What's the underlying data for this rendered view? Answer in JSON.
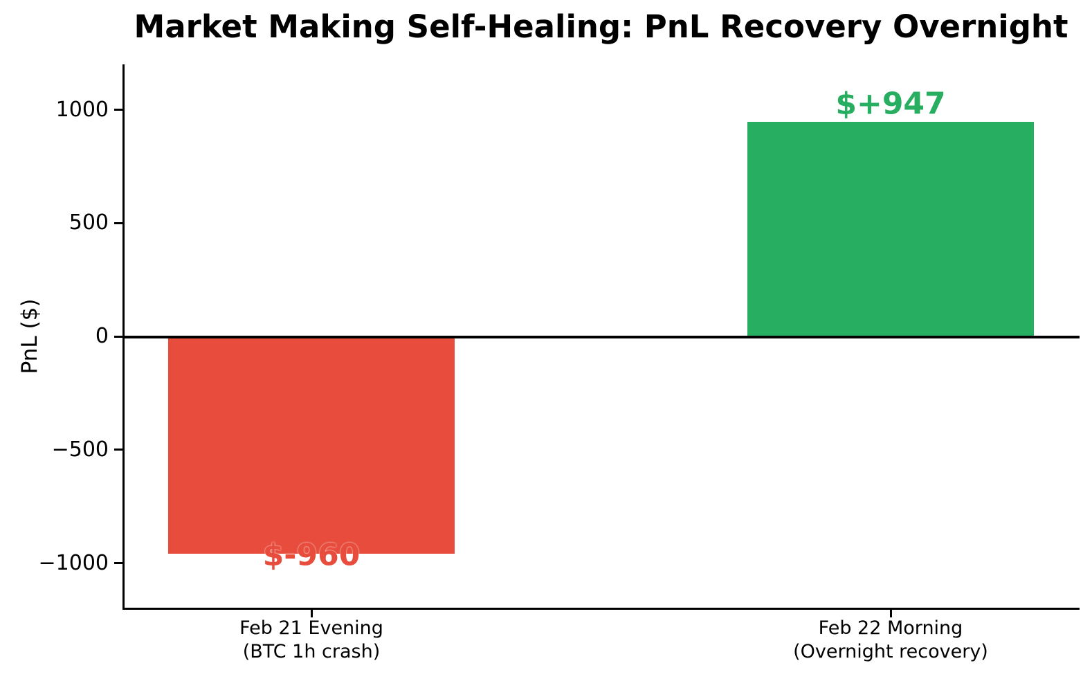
{
  "chart_data": {
    "type": "bar",
    "title": "Market Making Self-Healing: PnL Recovery Overnight",
    "xlabel": "",
    "ylabel": "PnL ($)",
    "categories": [
      [
        "Feb 21 Evening",
        "(BTC 1h crash)"
      ],
      [
        "Feb 22 Morning",
        "(Overnight recovery)"
      ]
    ],
    "values": [
      -960,
      947
    ],
    "bar_labels": [
      "$-960",
      "$+947"
    ],
    "bar_colors": [
      "#e74c3c",
      "#27ae60"
    ],
    "yticks": [
      1000,
      500,
      0,
      -500,
      -1000
    ],
    "ytick_labels": [
      "1000",
      "500",
      "0",
      "−500",
      "−1000"
    ],
    "ylim": [
      -1200,
      1200
    ],
    "grid": false,
    "legend": "none",
    "zero_line": true
  }
}
